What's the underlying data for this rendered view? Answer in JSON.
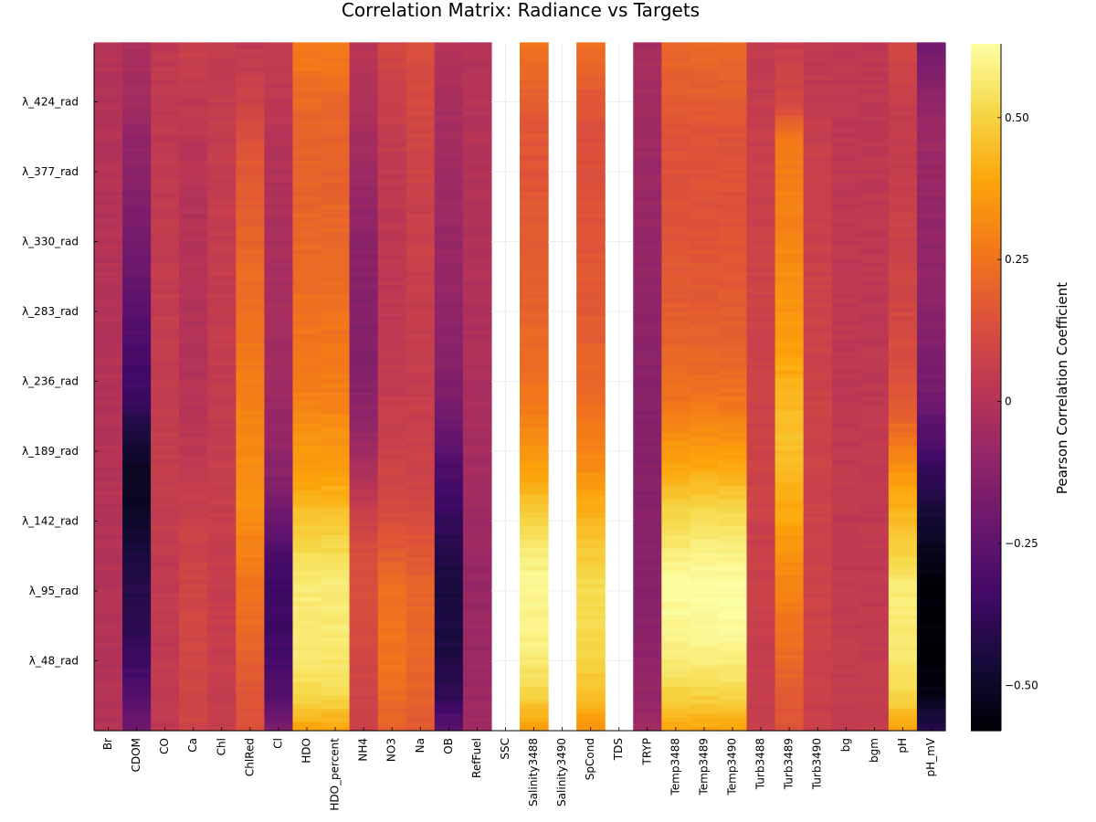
{
  "chart_data": {
    "type": "heatmap",
    "title": "Correlation Matrix: Radiance vs Targets",
    "colorbar_label": "Pearson Correlation Coefficient",
    "colormap": "inferno",
    "clim": [
      -0.58,
      0.63
    ],
    "colorbar_ticks": [
      {
        "value": 0.5,
        "label": "0.50"
      },
      {
        "value": 0.25,
        "label": "0.25"
      },
      {
        "value": 0,
        "label": "0"
      },
      {
        "value": -0.25,
        "label": "−0.25"
      },
      {
        "value": -0.5,
        "label": "−0.50"
      }
    ],
    "x_categories": [
      "Br",
      "CDOM",
      "CO",
      "Ca",
      "Chl",
      "ChlRed",
      "Cl",
      "HDO",
      "HDO_percent",
      "NH4",
      "NO3",
      "Na",
      "OB",
      "RefFuel",
      "SSC",
      "Salinity3488",
      "Salinity3490",
      "SpCond",
      "TDS",
      "TRYP",
      "Temp3488",
      "Temp3489",
      "Temp3490",
      "Turb3488",
      "Turb3489",
      "Turb3490",
      "bg",
      "bgm",
      "pH",
      "pH_mV"
    ],
    "y_tick_labels": [
      "λ_424_rad",
      "λ_377_rad",
      "λ_330_rad",
      "λ_283_rad",
      "λ_236_rad",
      "λ_189_rad",
      "λ_142_rad",
      "λ_95_rad",
      "λ_48_rad"
    ],
    "y_tick_values": [
      424,
      377,
      330,
      283,
      236,
      189,
      142,
      95,
      48
    ],
    "y_range": [
      1,
      463
    ],
    "missing_columns": [
      "SSC",
      "Salinity3490",
      "TDS"
    ],
    "row_profiles": {
      "wavelength_index": [
        1,
        25,
        50,
        75,
        100,
        125,
        150,
        175,
        200,
        225,
        250,
        275,
        300,
        325,
        350,
        375,
        400,
        425,
        463
      ],
      "series": [
        {
          "name": "Br",
          "values": [
            0.0,
            0.0,
            0.0,
            0.0,
            0.0,
            0.0,
            0.0,
            0.0,
            0.0,
            0.0,
            0.0,
            0.0,
            0.0,
            0.0,
            0.0,
            0.0,
            0.0,
            0.0,
            0.0
          ]
        },
        {
          "name": "CDOM",
          "values": [
            -0.2,
            -0.29,
            -0.36,
            -0.4,
            -0.42,
            -0.45,
            -0.51,
            -0.52,
            -0.45,
            -0.36,
            -0.33,
            -0.28,
            -0.23,
            -0.19,
            -0.16,
            -0.12,
            -0.1,
            -0.05,
            -0.03
          ]
        },
        {
          "name": "CO",
          "values": [
            0.04,
            0.04,
            0.04,
            0.04,
            0.04,
            0.05,
            0.05,
            0.05,
            0.05,
            0.05,
            0.05,
            0.05,
            0.05,
            0.05,
            0.04,
            0.04,
            0.04,
            0.04,
            0.04
          ]
        },
        {
          "name": "Ca",
          "values": [
            0.09,
            0.1,
            0.1,
            0.1,
            0.09,
            0.08,
            0.06,
            0.04,
            0.02,
            0.01,
            0.0,
            0.0,
            0.0,
            0.0,
            0.0,
            0.01,
            0.02,
            0.04,
            0.07
          ]
        },
        {
          "name": "Chl",
          "values": [
            0.06,
            0.06,
            0.06,
            0.06,
            0.06,
            0.06,
            0.06,
            0.06,
            0.05,
            0.05,
            0.05,
            0.05,
            0.05,
            0.05,
            0.05,
            0.05,
            0.05,
            0.05,
            0.05
          ]
        },
        {
          "name": "ChlRed",
          "values": [
            0.13,
            0.16,
            0.19,
            0.23,
            0.26,
            0.29,
            0.33,
            0.33,
            0.31,
            0.29,
            0.27,
            0.25,
            0.23,
            0.21,
            0.19,
            0.17,
            0.14,
            0.08,
            0.04
          ]
        },
        {
          "name": "Cl",
          "values": [
            -0.15,
            -0.28,
            -0.33,
            -0.35,
            -0.35,
            -0.29,
            -0.2,
            -0.12,
            -0.09,
            -0.07,
            -0.06,
            -0.05,
            -0.04,
            -0.03,
            -0.02,
            -0.01,
            0.0,
            0.03,
            0.05
          ]
        },
        {
          "name": "HDO",
          "values": [
            0.38,
            0.52,
            0.56,
            0.57,
            0.57,
            0.51,
            0.45,
            0.37,
            0.34,
            0.29,
            0.27,
            0.25,
            0.23,
            0.22,
            0.21,
            0.2,
            0.2,
            0.22,
            0.28
          ]
        },
        {
          "name": "HDO_percent",
          "values": [
            0.38,
            0.52,
            0.56,
            0.57,
            0.57,
            0.51,
            0.45,
            0.37,
            0.34,
            0.29,
            0.27,
            0.25,
            0.23,
            0.22,
            0.21,
            0.2,
            0.2,
            0.22,
            0.28
          ]
        },
        {
          "name": "NH4",
          "values": [
            0.08,
            0.09,
            0.1,
            0.12,
            0.13,
            0.12,
            0.06,
            -0.02,
            -0.08,
            -0.12,
            -0.14,
            -0.14,
            -0.13,
            -0.12,
            -0.1,
            -0.07,
            -0.04,
            -0.01,
            0.02
          ]
        },
        {
          "name": "NO3",
          "values": [
            0.19,
            0.23,
            0.25,
            0.25,
            0.23,
            0.17,
            0.12,
            0.09,
            0.07,
            0.05,
            0.04,
            0.03,
            0.03,
            0.03,
            0.03,
            0.04,
            0.05,
            0.07,
            0.1
          ]
        },
        {
          "name": "Na",
          "values": [
            0.17,
            0.2,
            0.21,
            0.21,
            0.2,
            0.16,
            0.11,
            0.08,
            0.07,
            0.06,
            0.06,
            0.06,
            0.06,
            0.07,
            0.07,
            0.08,
            0.09,
            0.11,
            0.13
          ]
        },
        {
          "name": "OB",
          "values": [
            -0.25,
            -0.39,
            -0.43,
            -0.45,
            -0.45,
            -0.41,
            -0.36,
            -0.31,
            -0.23,
            -0.16,
            -0.13,
            -0.11,
            -0.09,
            -0.08,
            -0.07,
            -0.06,
            -0.05,
            -0.03,
            0.0
          ]
        },
        {
          "name": "RefFuel",
          "values": [
            -0.06,
            -0.07,
            -0.08,
            -0.08,
            -0.08,
            -0.07,
            -0.06,
            -0.05,
            -0.04,
            -0.03,
            -0.02,
            -0.02,
            -0.01,
            -0.01,
            -0.01,
            0.0,
            0.0,
            0.0,
            0.0
          ]
        },
        {
          "name": "Salinity3488",
          "values": [
            0.36,
            0.5,
            0.57,
            0.6,
            0.61,
            0.56,
            0.48,
            0.38,
            0.32,
            0.26,
            0.23,
            0.21,
            0.19,
            0.18,
            0.17,
            0.16,
            0.16,
            0.18,
            0.26
          ]
        },
        {
          "name": "SpCond",
          "values": [
            0.33,
            0.45,
            0.5,
            0.52,
            0.52,
            0.47,
            0.41,
            0.33,
            0.28,
            0.23,
            0.2,
            0.18,
            0.17,
            0.16,
            0.15,
            0.14,
            0.14,
            0.16,
            0.24
          ]
        },
        {
          "name": "TRYP",
          "values": [
            -0.06,
            -0.09,
            -0.11,
            -0.12,
            -0.13,
            -0.13,
            -0.13,
            -0.13,
            -0.13,
            -0.13,
            -0.12,
            -0.11,
            -0.1,
            -0.09,
            -0.08,
            -0.07,
            -0.06,
            -0.05,
            -0.04
          ]
        },
        {
          "name": "Temp3488",
          "values": [
            0.38,
            0.5,
            0.57,
            0.61,
            0.62,
            0.57,
            0.5,
            0.4,
            0.33,
            0.25,
            0.22,
            0.19,
            0.17,
            0.16,
            0.15,
            0.15,
            0.15,
            0.18,
            0.22
          ]
        },
        {
          "name": "Temp3489",
          "values": [
            0.38,
            0.5,
            0.58,
            0.62,
            0.63,
            0.58,
            0.51,
            0.41,
            0.33,
            0.25,
            0.22,
            0.19,
            0.17,
            0.16,
            0.15,
            0.15,
            0.15,
            0.18,
            0.22
          ]
        },
        {
          "name": "Temp3490",
          "values": [
            0.38,
            0.5,
            0.58,
            0.62,
            0.63,
            0.58,
            0.51,
            0.41,
            0.33,
            0.25,
            0.22,
            0.19,
            0.17,
            0.16,
            0.15,
            0.15,
            0.15,
            0.18,
            0.22
          ]
        },
        {
          "name": "Turb3488",
          "values": [
            0.05,
            0.06,
            0.06,
            0.07,
            0.07,
            0.07,
            0.08,
            0.08,
            0.08,
            0.08,
            0.08,
            0.08,
            0.08,
            0.08,
            0.07,
            0.07,
            0.06,
            0.05,
            0.04
          ]
        },
        {
          "name": "Turb3489",
          "values": [
            0.15,
            0.18,
            0.22,
            0.26,
            0.3,
            0.35,
            0.4,
            0.44,
            0.45,
            0.43,
            0.39,
            0.36,
            0.33,
            0.31,
            0.29,
            0.28,
            0.27,
            0.1,
            0.06
          ]
        },
        {
          "name": "Turb3490",
          "values": [
            0.06,
            0.07,
            0.07,
            0.08,
            0.08,
            0.08,
            0.08,
            0.08,
            0.08,
            0.08,
            0.08,
            0.08,
            0.08,
            0.07,
            0.07,
            0.07,
            0.06,
            0.05,
            0.04
          ]
        },
        {
          "name": "bg",
          "values": [
            0.05,
            0.05,
            0.05,
            0.04,
            0.04,
            0.04,
            0.04,
            0.04,
            0.04,
            0.03,
            0.03,
            0.03,
            0.03,
            0.03,
            0.03,
            0.03,
            0.03,
            0.03,
            0.03
          ]
        },
        {
          "name": "bgm",
          "values": [
            0.05,
            0.05,
            0.05,
            0.04,
            0.04,
            0.04,
            0.04,
            0.04,
            0.04,
            0.03,
            0.03,
            0.03,
            0.03,
            0.03,
            0.03,
            0.03,
            0.03,
            0.03,
            0.03
          ]
        },
        {
          "name": "pH",
          "values": [
            0.38,
            0.51,
            0.56,
            0.57,
            0.57,
            0.48,
            0.42,
            0.35,
            0.24,
            0.16,
            0.13,
            0.11,
            0.09,
            0.08,
            0.07,
            0.06,
            0.06,
            0.06,
            0.1
          ]
        },
        {
          "name": "pH_mV",
          "values": [
            -0.4,
            -0.54,
            -0.58,
            -0.58,
            -0.58,
            -0.52,
            -0.45,
            -0.38,
            -0.28,
            -0.2,
            -0.16,
            -0.13,
            -0.11,
            -0.1,
            -0.09,
            -0.08,
            -0.07,
            -0.1,
            -0.2
          ]
        }
      ]
    }
  }
}
